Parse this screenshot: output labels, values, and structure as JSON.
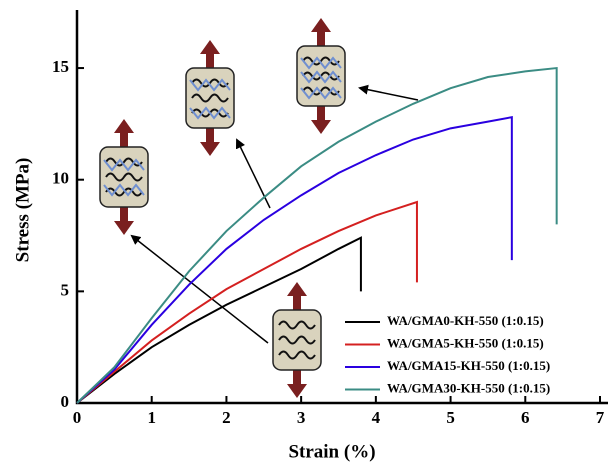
{
  "chart_data": {
    "type": "line",
    "xlabel": "Strain (%)",
    "ylabel": "Stress (MPa)",
    "xlim": [
      0,
      7
    ],
    "xticks": [
      0,
      1,
      2,
      3,
      4,
      5,
      6,
      7
    ],
    "ylim": [
      0,
      17.6
    ],
    "yticks": [
      0,
      5,
      10,
      15
    ],
    "legend": "lower right",
    "series": [
      {
        "name": "WA/GMA0-KH-550 (1:0.15)",
        "color": "#000000",
        "x": [
          0,
          0.5,
          1,
          1.5,
          2,
          2.5,
          3,
          3.5,
          3.8,
          3.8
        ],
        "values": [
          0,
          1.3,
          2.5,
          3.5,
          4.4,
          5.2,
          6.0,
          6.9,
          7.4,
          5.0
        ]
      },
      {
        "name": "WA/GMA5-KH-550 (1:0.15)",
        "color": "#d42020",
        "x": [
          0,
          0.5,
          1,
          1.5,
          2,
          2.5,
          3,
          3.5,
          4,
          4.55,
          4.55
        ],
        "values": [
          0,
          1.4,
          2.8,
          4.0,
          5.1,
          6.0,
          6.9,
          7.7,
          8.4,
          9.0,
          5.4
        ]
      },
      {
        "name": "WA/GMA15-KH-550 (1:0.15)",
        "color": "#2a00e0",
        "x": [
          0,
          0.5,
          1,
          1.5,
          2,
          2.5,
          3,
          3.5,
          4,
          4.5,
          5,
          5.5,
          5.82,
          5.82
        ],
        "values": [
          0,
          1.5,
          3.5,
          5.3,
          6.9,
          8.2,
          9.3,
          10.3,
          11.1,
          11.8,
          12.3,
          12.6,
          12.8,
          6.4
        ]
      },
      {
        "name": "WA/GMA30-KH-550 (1:0.15)",
        "color": "#3b8c84",
        "x": [
          0,
          0.5,
          1,
          1.5,
          2,
          2.5,
          3,
          3.5,
          4,
          4.5,
          5,
          5.5,
          6,
          6.42,
          6.42
        ],
        "values": [
          0,
          1.6,
          3.8,
          5.9,
          7.7,
          9.2,
          10.6,
          11.7,
          12.6,
          13.4,
          14.1,
          14.6,
          14.85,
          15.0,
          8.0
        ]
      }
    ]
  }
}
